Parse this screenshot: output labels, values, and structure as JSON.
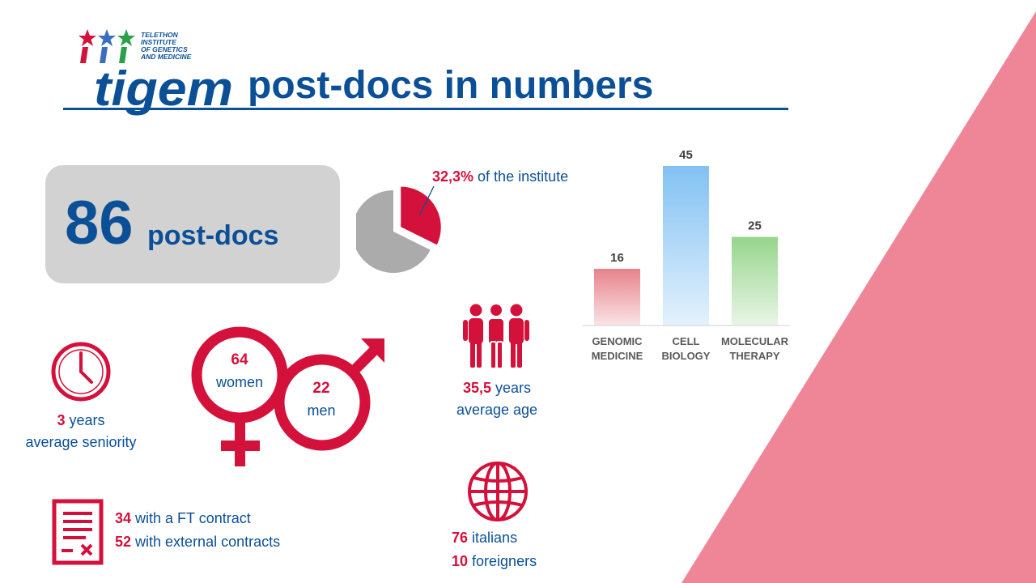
{
  "logo": {
    "wordmark": "tigem",
    "institute_line1": "TELETHON",
    "institute_line2": "INSTITUTE",
    "institute_line3": "OF GENETICS",
    "institute_line4": "AND MEDICINE"
  },
  "title": "post-docs in numbers",
  "total": {
    "count": "86",
    "unit": "post-docs"
  },
  "share": {
    "percent_text": "32,3%",
    "suffix": " of the institute",
    "fraction": 0.323
  },
  "seniority": {
    "value": "3",
    "unit": " years",
    "label": "average seniority"
  },
  "gender": {
    "women_count": "64",
    "women_label": "women",
    "men_count": "22",
    "men_label": "men"
  },
  "age": {
    "value": "35,5",
    "unit": " years",
    "label": "average age"
  },
  "nationality": {
    "italians_count": "76",
    "italians_label": " italians",
    "foreigners_count": "10",
    "foreigners_label": " foreigners"
  },
  "contracts": {
    "ft_count": "34",
    "ft_label": " with a FT contract",
    "external_count": "52",
    "external_label": " with external contracts"
  },
  "icons": {
    "clock": "clock-icon",
    "gender": "gender-symbols-icon",
    "people": "people-icon",
    "globe": "globe-icon",
    "contract": "contract-icon"
  },
  "colors": {
    "accent_red": "#d3113a",
    "brand_blue": "#0b4f96",
    "box_gray": "#d2d2d2",
    "pie_gray": "#ababab",
    "decor_pink": "#ee8698"
  },
  "chart_data": {
    "type": "bar",
    "categories": [
      [
        "GENOMIC",
        "MEDICINE"
      ],
      [
        "CELL",
        "BIOLOGY"
      ],
      [
        "MOLECULAR",
        "THERAPY"
      ]
    ],
    "values": [
      16,
      45,
      25
    ],
    "bar_colors": [
      "#e7838b",
      "#82c1f3",
      "#97d58c"
    ],
    "title": "",
    "xlabel": "",
    "ylabel": "",
    "ylim": [
      0,
      45
    ],
    "grid": false,
    "legend": "none"
  }
}
